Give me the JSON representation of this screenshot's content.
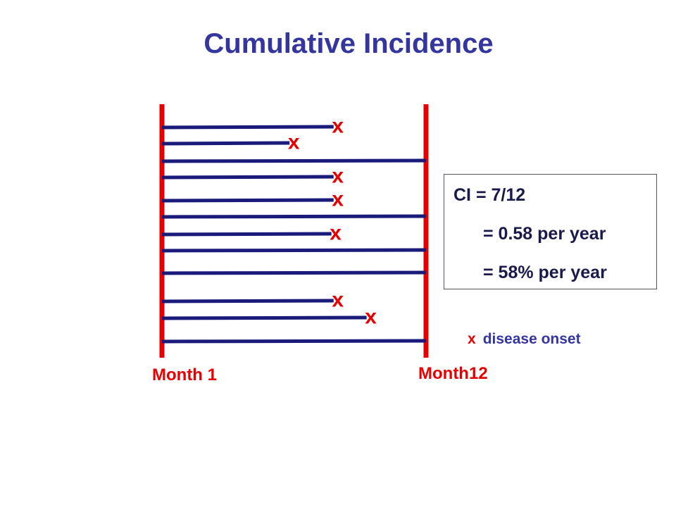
{
  "title": "Cumulative Incidence",
  "axis": {
    "start_label": "Month 1",
    "end_label": "Month12"
  },
  "subjects": [
    {
      "followup_months": 7.8,
      "onset": true
    },
    {
      "followup_months": 5.8,
      "onset": true
    },
    {
      "followup_months": 12,
      "onset": false
    },
    {
      "followup_months": 7.8,
      "onset": true
    },
    {
      "followup_months": 7.8,
      "onset": true
    },
    {
      "followup_months": 12,
      "onset": false
    },
    {
      "followup_months": 7.7,
      "onset": true
    },
    {
      "followup_months": 12,
      "onset": false
    },
    {
      "followup_months": 12,
      "onset": false
    },
    {
      "followup_months": 7.8,
      "onset": true
    },
    {
      "followup_months": 9.3,
      "onset": true
    },
    {
      "followup_months": 12,
      "onset": false
    }
  ],
  "onset_symbol": "x",
  "ci_box": {
    "line1": "CI = 7/12",
    "line2": "= 0.58 per year",
    "line3": "= 58% per year"
  },
  "legend": {
    "symbol": "x",
    "label": "disease onset"
  },
  "colors": {
    "title": "#3535a0",
    "timeline": "#1a1a7a",
    "boundary": "#e60000",
    "onset": "#e60000"
  }
}
